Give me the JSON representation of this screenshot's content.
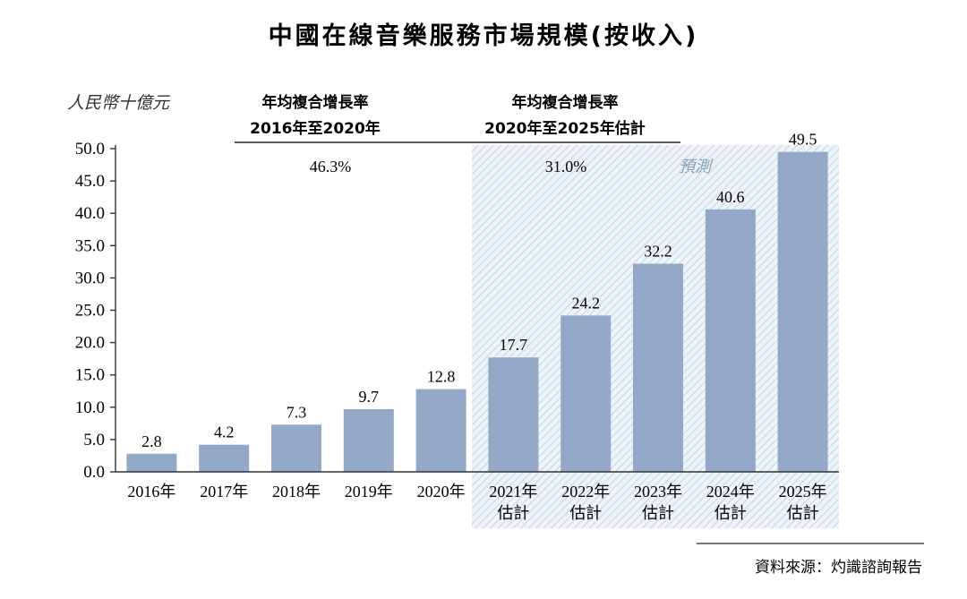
{
  "chart_data": {
    "type": "bar",
    "title": "中國在線音樂服務市場規模(按收入)",
    "ylabel": "人民幣十億元",
    "categories": [
      "2016年",
      "2017年",
      "2018年",
      "2019年",
      "2020年",
      "2021年估計",
      "2022年估計",
      "2023年估計",
      "2024年估計",
      "2025年估計"
    ],
    "category_lines": [
      [
        "2016年"
      ],
      [
        "2017年"
      ],
      [
        "2018年"
      ],
      [
        "2019年"
      ],
      [
        "2020年"
      ],
      [
        "2021年",
        "估計"
      ],
      [
        "2022年",
        "估計"
      ],
      [
        "2023年",
        "估計"
      ],
      [
        "2024年",
        "估計"
      ],
      [
        "2025年",
        "估計"
      ]
    ],
    "values": [
      2.8,
      4.2,
      7.3,
      9.7,
      12.8,
      17.7,
      24.2,
      32.2,
      40.6,
      49.5
    ],
    "data_labels": [
      "2.8",
      "4.2",
      "7.3",
      "9.7",
      "12.8",
      "17.7",
      "24.2",
      "32.2",
      "40.6",
      "49.5"
    ],
    "ylim": [
      0,
      50
    ],
    "yticks": [
      "0.0",
      "5.0",
      "10.0",
      "15.0",
      "20.0",
      "25.0",
      "30.0",
      "35.0",
      "40.0",
      "45.0",
      "50.0"
    ],
    "forecast_label": "預測",
    "forecast_start_index": 5,
    "cagr": [
      {
        "label_line1": "年均複合增長率",
        "label_line2": "2016年至2020年",
        "value": "46.3%"
      },
      {
        "label_line1": "年均複合增長率",
        "label_line2": "2020年至2025年估計",
        "value": "31.0%"
      }
    ],
    "source": "資料來源：灼識諮詢報告",
    "colors": {
      "bar": "#94a9c7",
      "axis": "#333333",
      "forecast_hatch": "#b9cde0"
    }
  }
}
